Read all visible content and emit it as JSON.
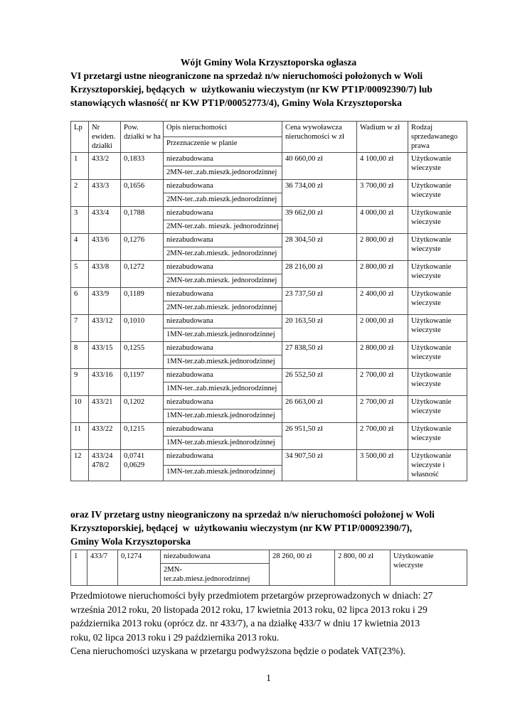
{
  "title_lines": [
    "Wójt Gminy Wola Krzysztoporska ogłasza",
    "VI przetargi ustne nieograniczone na sprzedaż n/w nieruchomości położonych w Woli",
    "Krzysztoporskiej, będących  w  użytkowaniu wieczystym (nr KW PT1P/00092390/7) lub",
    "stanowiących własność( nr KW PT1P/00052773/4), Gminy Wola Krzysztoporska"
  ],
  "table1": {
    "header": {
      "lp": "Lp",
      "nr": "Nr ewiden. działki",
      "pow": "Pow. działki w ha",
      "opis": "Opis nieruchomości",
      "plan": "Przeznaczenie w planie",
      "cena": "Cena wywoławcza nieruchomości w zł",
      "wadium": "Wadium w zł",
      "rodzaj": "Rodzaj sprzedawanego prawa"
    },
    "rows": [
      {
        "lp": "1",
        "nr": "433/2",
        "pow": "0,1833",
        "opis": "niezabudowana",
        "plan": "2MN-ter..zab.mieszk.jednorodzinnej",
        "cena": "40 660,00 zł",
        "wadium": "4 100,00 zł",
        "rodzaj": "Użytkowanie wieczyste"
      },
      {
        "lp": "2",
        "nr": "433/3",
        "pow": "0,1656",
        "opis": "niezabudowana",
        "plan": "2MN-ter..zab.mieszk.jednorodzinnej",
        "cena": "36 734,00 zł",
        "wadium": "3 700,00 zł",
        "rodzaj": "Użytkowanie wieczyste"
      },
      {
        "lp": "3",
        "nr": "433/4",
        "pow": "0,1788",
        "opis": "niezabudowana",
        "plan": "2MN-ter.zab. mieszk. jednorodzinnej",
        "cena": "39 662,00 zł",
        "wadium": "4 000,00 zł",
        "rodzaj": "Użytkowanie wieczyste"
      },
      {
        "lp": "4",
        "nr": "433/6",
        "pow": "0,1276",
        "opis": "niezabudowana",
        "plan": "2MN-ter.zab.mieszk. jednorodzinnej",
        "cena": "28 304,50 zł",
        "wadium": "2 800,00 zł",
        "rodzaj": "Użytkowanie wieczyste"
      },
      {
        "lp": "5",
        "nr": "433/8",
        "pow": "0,1272",
        "opis": "niezabudowana",
        "plan": "2MN-ter.zab.mieszk. jednorodzinnej",
        "cena": "28 216,00 zł",
        "wadium": "2 800,00 zł",
        "rodzaj": "Użytkowanie wieczyste"
      },
      {
        "lp": "6",
        "nr": "433/9",
        "pow": "0,1189",
        "opis": "niezabudowana",
        "plan": "2MN-ter.zab.mieszk. jednorodzinnej",
        "cena": "23 737,50 zł",
        "wadium": "2 400,00 zł",
        "rodzaj": "Użytkowanie wieczyste"
      },
      {
        "lp": "7",
        "nr": "433/12",
        "pow": "0,1010",
        "opis": "niezabudowana",
        "plan": "1MN-ter.zab.mieszk.jednorodzinnej",
        "cena": "20 163,50 zł",
        "wadium": "2 000,00 zł",
        "rodzaj": "Użytkowanie wieczyste"
      },
      {
        "lp": "8",
        "nr": "433/15",
        "pow": "0,1255",
        "opis": "niezabudowana",
        "plan": "1MN-ter.zab.mieszk.jednorodzinnej",
        "cena": "27 838,50 zł",
        "wadium": "2 800,00 zł",
        "rodzaj": "Użytkowanie wieczyste"
      },
      {
        "lp": "9",
        "nr": "433/16",
        "pow": "0,1197",
        "opis": "niezabudowana",
        "plan": "1MN-ter..zab.mieszk.jednorodzinnej",
        "cena": "26 552,50 zł",
        "wadium": "2 700,00 zł",
        "rodzaj": "Użytkowanie wieczyste"
      },
      {
        "lp": "10",
        "nr": "433/21",
        "pow": "0,1202",
        "opis": "niezabudowana",
        "plan": "1MN-ter.zab.mieszk.jednorodzinnej",
        "cena": "26 663,00 zł",
        "wadium": "2 700,00 zł",
        "rodzaj": "Użytkowanie wieczyste"
      },
      {
        "lp": "11",
        "nr": "433/22",
        "pow": "0,1215",
        "opis": "niezabudowana",
        "plan": "1MN-ter.zab.mieszk.jednorodzinnej",
        "cena": "26 951,50 zł",
        "wadium": "2 700,00 zł",
        "rodzaj": "Użytkowanie wieczyste"
      },
      {
        "lp": "12",
        "nr": "433/24\n478/2",
        "pow": "0,0741\n0,0629",
        "opis": "niezabudowana",
        "plan": "1MN-ter.zab.mieszk.jednorodzinnej",
        "cena": "34 907,50 zł",
        "wadium": "3 500,00 zł",
        "rodzaj": "Użytkowanie wieczyste i własność"
      }
    ]
  },
  "section2": {
    "heading_lines": [
      "oraz IV przetarg ustny nieograniczony na sprzedaż n/w nieruchomości położonej w Woli",
      "Krzysztoporskiej, będącej  w  użytkowaniu wieczystym (nr KW PT1P/00092390/7),",
      "Gminy Wola Krzysztoporska"
    ],
    "rows": [
      {
        "lp": "1",
        "nr": "433/7",
        "pow": "0,1274",
        "opis": "niezabudowana",
        "plan": "2MN-ter.zab.miesz.jednorodzinnej",
        "cena": "28 260, 00 zł",
        "wadium": "2 800, 00 zł",
        "rodzaj": "Użytkowanie wieczyste"
      }
    ]
  },
  "paragraph_lines": [
    "Przedmiotowe nieruchomości były przedmiotem przetargów przeprowadzonych w dniach: 27",
    "września 2012 roku, 20 listopada 2012 roku, 17 kwietnia 2013 roku, 02 lipca 2013 roku i 29",
    "października 2013 roku (oprócz dz. nr 433/7), a na działkę 433/7 w dniu 17 kwietnia 2013",
    "roku, 02 lipca 2013 roku i 29 października 2013 roku.",
    "Cena nieruchomości uzyskana w przetargu podwyższona będzie o podatek VAT(23%)."
  ],
  "page_number": "1"
}
